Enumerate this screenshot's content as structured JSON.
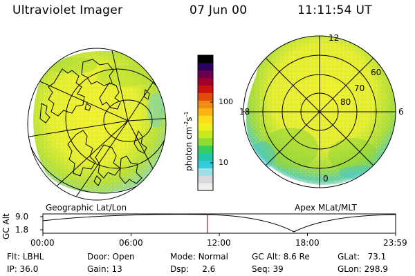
{
  "header": {
    "instrument": "Ultraviolet Imager",
    "date": "07 Jun 00",
    "time": "11:11:54 UT"
  },
  "colorbar": {
    "label": "photon cm",
    "label_exp1": "-2",
    "label_s": "s",
    "label_exp2": "-1",
    "ticks": [
      "100",
      "10"
    ],
    "colors": [
      "#eeeeee",
      "#d9d9d9",
      "#9fe0e6",
      "#33ccd9",
      "#22c7a8",
      "#33d060",
      "#8fdc30",
      "#c6ea1f",
      "#f0f020",
      "#fadd18",
      "#fbb414",
      "#f08a10",
      "#e04a0a",
      "#cc1010",
      "#a0002a",
      "#6a0050",
      "#2c0060",
      "#000000"
    ]
  },
  "geo_map": {
    "caption": "Geographic Lat/Lon"
  },
  "polar_map": {
    "caption": "Apex MLat/MLT",
    "mlt_labels": {
      "top": "12",
      "right": "6",
      "bottom": "0",
      "left": "18"
    },
    "lat_labels": [
      "60",
      "70",
      "80"
    ]
  },
  "orbit": {
    "ylabel": "GC Alt",
    "y_ticks": [
      "9.0",
      "1.8"
    ],
    "x_ticks": [
      "00:00",
      "06:00",
      "12:00",
      "18:00",
      "23:59"
    ],
    "current_time_fraction": 0.466
  },
  "status": {
    "flt_label": "Flt:",
    "flt_value": "LBHL",
    "ip_label": "IP:",
    "ip_value": "36.0",
    "door_label": "Door:",
    "door_value": "Open",
    "gain_label": "Gain:",
    "gain_value": "13",
    "mode_label": "Mode:",
    "mode_value": "Normal",
    "dsp_label": "Dsp:",
    "dsp_value": "2.6",
    "gcalt_label": "GC Alt:",
    "gcalt_value": "8.6 Re",
    "seq_label": "Seq:",
    "seq_value": "39",
    "glat_label": "GLat:",
    "glat_value": "73.1",
    "glon_label": "GLon:",
    "glon_value": "298.9"
  },
  "colors": {
    "auroral_base": "#e8f02a",
    "auroral_green": "#9ad436",
    "auroral_edge": "#7ccfc0",
    "orbit_marker": "#dd0000"
  }
}
